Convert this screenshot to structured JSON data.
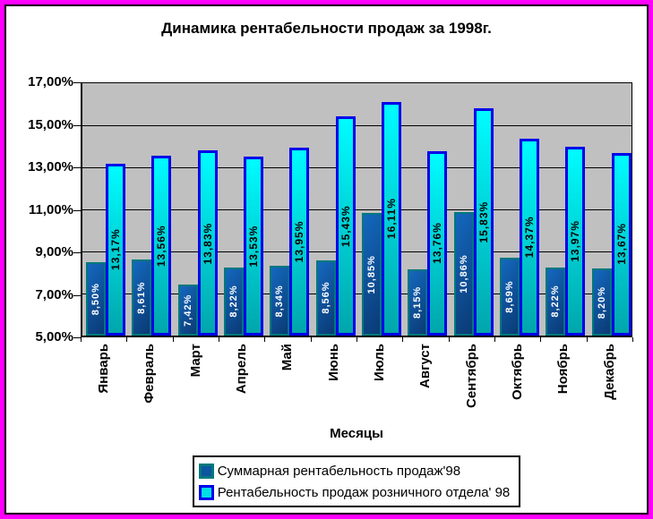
{
  "frame": {
    "outer_border_color": "#FF00FF",
    "inner_border_color": "#000000"
  },
  "chart_data": {
    "type": "bar",
    "title": "Динамика рентабельности продаж за 1998г.",
    "xlabel": "Месяцы",
    "ylabel": "",
    "ylim": [
      5,
      17
    ],
    "grid": "horizontal",
    "legend_position": "bottom",
    "plot_background": "#C0C0C0",
    "y_ticks": [
      {
        "value": 17,
        "label": "17,00%"
      },
      {
        "value": 15,
        "label": "15,00%"
      },
      {
        "value": 13,
        "label": "13,00%"
      },
      {
        "value": 11,
        "label": "11,00%"
      },
      {
        "value": 9,
        "label": "9,00%"
      },
      {
        "value": 7,
        "label": "7,00%"
      },
      {
        "value": 5,
        "label": "5,00%"
      }
    ],
    "categories": [
      "Январь",
      "Февраль",
      "Март",
      "Апрель",
      "Май",
      "Июнь",
      "Июль",
      "Август",
      "Сентябрь",
      "Октябрь",
      "Ноябрь",
      "Декабрь"
    ],
    "series": [
      {
        "name": "Суммарная рентабельность продаж'98",
        "values": [
          8.5,
          8.61,
          7.42,
          8.22,
          8.34,
          8.56,
          10.85,
          8.15,
          10.86,
          8.69,
          8.22,
          8.2
        ],
        "labels": [
          "8,50%",
          "8,61%",
          "7,42%",
          "8,22%",
          "8,34%",
          "8,56%",
          "10,85%",
          "8,15%",
          "10,86%",
          "8,69%",
          "8,22%",
          "8,20%"
        ],
        "colors": {
          "fill_top": "#1468BE",
          "fill_bottom": "#0A3A74",
          "border": "#00787C",
          "label": "#FFFFFF",
          "swatch_fill": "#0D55A0"
        }
      },
      {
        "name": "Рентабельность продаж розничного отдела' 98",
        "values": [
          13.17,
          13.56,
          13.83,
          13.53,
          13.95,
          15.43,
          16.11,
          13.76,
          15.83,
          14.37,
          13.97,
          13.67
        ],
        "labels": [
          "13,17%",
          "13,56%",
          "13,83%",
          "13,53%",
          "13,95%",
          "15,43%",
          "16,11%",
          "13,76%",
          "15,83%",
          "14,37%",
          "13,97%",
          "13,67%"
        ],
        "colors": {
          "fill_top": "#00FCFF",
          "fill_bottom": "#00A6AC",
          "border": "#0000E8",
          "label": "#000000",
          "swatch_fill": "#00E0E6"
        }
      }
    ]
  }
}
